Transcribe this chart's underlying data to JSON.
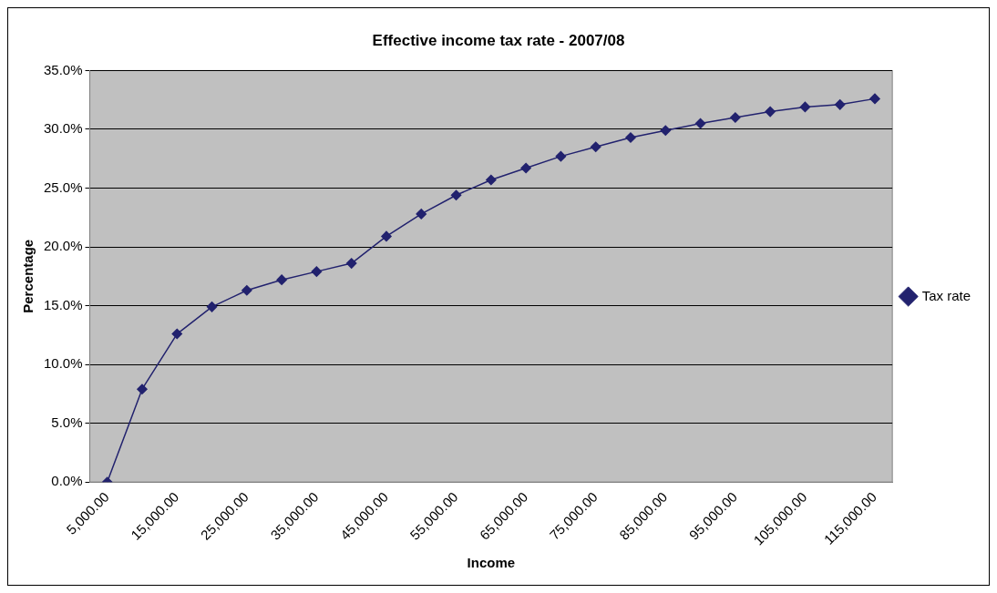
{
  "chart_data": {
    "type": "line",
    "title": "Effective income tax rate - 2007/08",
    "xlabel": "Income",
    "ylabel": "Percentage",
    "categories": [
      "5,000.00",
      null,
      "15,000.00",
      null,
      "25,000.00",
      null,
      "35,000.00",
      null,
      "45,000.00",
      null,
      "55,000.00",
      null,
      "65,000.00",
      null,
      "75,000.00",
      null,
      "85,000.00",
      null,
      "95,000.00",
      null,
      "105,000.00",
      null,
      "115,000.00"
    ],
    "series": [
      {
        "name": "Tax rate",
        "color": "#22226e",
        "values": [
          0,
          7.9,
          12.6,
          14.9,
          16.3,
          17.2,
          17.9,
          18.6,
          20.9,
          22.8,
          24.4,
          25.7,
          26.7,
          27.7,
          28.5,
          29.3,
          29.9,
          30.5,
          31.0,
          31.5,
          31.9,
          32.1,
          32.6
        ]
      }
    ],
    "ylim": [
      0,
      35
    ],
    "yticks": [
      {
        "value": 0,
        "label": "0.0%"
      },
      {
        "value": 5,
        "label": "5.0%"
      },
      {
        "value": 10,
        "label": "10.0%"
      },
      {
        "value": 15,
        "label": "15.0%"
      },
      {
        "value": 20,
        "label": "20.0%"
      },
      {
        "value": 25,
        "label": "25.0%"
      },
      {
        "value": 30,
        "label": "30.0%"
      },
      {
        "value": 35,
        "label": "35.0%"
      }
    ],
    "grid": "y",
    "legend": "right",
    "marker": "diamond",
    "line_style": "solid"
  }
}
